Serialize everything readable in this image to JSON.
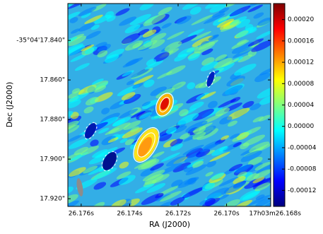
{
  "chart_data": {
    "type": "image",
    "xlabel": "RA (J2000)",
    "ylabel": "Dec (J2000)",
    "xlim": [
      26.17655,
      26.16818
    ],
    "xticks": [
      {
        "value": 26.176,
        "label": "26.176s"
      },
      {
        "value": 26.174,
        "label": "26.174s"
      },
      {
        "value": 26.172,
        "label": "26.172s"
      },
      {
        "value": 26.17,
        "label": "26.170s"
      },
      {
        "value": 26.168,
        "label": "17h03m26.168s"
      }
    ],
    "ylim": [
      17.9239,
      17.8214
    ],
    "yticks": [
      {
        "value": 17.84,
        "label": "-35°04'17.840\""
      },
      {
        "value": 17.86,
        "label": "17.860\""
      },
      {
        "value": 17.88,
        "label": "17.880\""
      },
      {
        "value": 17.9,
        "label": "17.900\""
      },
      {
        "value": 17.92,
        "label": "17.920\""
      }
    ],
    "colormap": [
      "#00007f",
      "#0000ff",
      "#007fff",
      "#00ffff",
      "#7fff7f",
      "#ffff00",
      "#ff7f00",
      "#ff0000",
      "#7f0000"
    ],
    "colorbar": {
      "lim": [
        -0.00015,
        0.00023
      ],
      "ticks": [
        {
          "value": 0.0002,
          "label": "0.00020"
        },
        {
          "value": 0.00016,
          "label": "0.00016"
        },
        {
          "value": 0.00012,
          "label": "0.00012"
        },
        {
          "value": 8e-05,
          "label": "0.00008"
        },
        {
          "value": 4e-05,
          "label": "0.00004"
        },
        {
          "value": 0,
          "label": "0.00000"
        },
        {
          "value": -4e-05,
          "label": "-0.00004"
        },
        {
          "value": -8e-05,
          "label": "-0.00008"
        },
        {
          "value": -0.00012,
          "label": "-0.00012"
        }
      ]
    }
  }
}
